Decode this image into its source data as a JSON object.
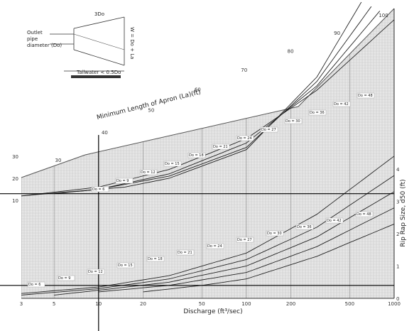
{
  "chart_data": {
    "type": "line",
    "title": "",
    "xlabel": "Discharge (ft³/sec)",
    "ylabel_left": "",
    "ylabel_right": "Rip Rap Size, d50 (ft)",
    "ylabel_diagonal": "Minimum Length of Apron (La)(ft)",
    "x_scale": "log",
    "xlim": [
      3,
      1000
    ],
    "x_ticks": [
      "3",
      "5",
      "10",
      "20",
      "50",
      "100",
      "200",
      "500",
      "1000"
    ],
    "left_ticks": [
      "10",
      "20",
      "30"
    ],
    "right_ticks": [
      "0",
      "1",
      "2",
      "3",
      "4"
    ],
    "diagonal_ticks": [
      "30",
      "40",
      "50",
      "60",
      "70",
      "80",
      "90",
      "100"
    ],
    "length_curve_labels": [
      "Do = 6",
      "Do = 9",
      "Do = 12",
      "Do = 15",
      "Do = 18",
      "Do = 21",
      "Do = 24",
      "Do = 27",
      "Do = 30",
      "Do = 36",
      "Do = 42",
      "Do = 48"
    ],
    "size_curve_labels": [
      "Do = 6",
      "Do = 9",
      "Do = 12",
      "Do = 15",
      "Do = 18",
      "Do = 21",
      "Do = 24",
      "Do = 27",
      "Do = 30",
      "Do = 36",
      "Do = 42",
      "Do = 48"
    ],
    "length_series": [
      {
        "x": [
          3,
          10,
          30,
          100,
          300,
          1000
        ],
        "y": [
          12,
          16,
          24,
          38,
          60,
          92
        ]
      },
      {
        "x": [
          3,
          10,
          30,
          100,
          300,
          800
        ],
        "y": [
          12,
          15,
          22,
          36,
          62,
          96
        ]
      },
      {
        "x": [
          5,
          10,
          30,
          100,
          300,
          700
        ],
        "y": [
          13,
          15,
          21,
          34,
          64,
          98
        ]
      },
      {
        "x": [
          7,
          15,
          30,
          100,
          300,
          600
        ],
        "y": [
          14,
          16,
          20,
          33,
          66,
          100
        ]
      }
    ],
    "size_series": [
      {
        "x": [
          3,
          10,
          30,
          100,
          300,
          1000
        ],
        "y": [
          0.15,
          0.35,
          0.7,
          1.4,
          2.6,
          4.4
        ]
      },
      {
        "x": [
          3,
          10,
          30,
          100,
          300,
          1000
        ],
        "y": [
          0.1,
          0.3,
          0.6,
          1.2,
          2.2,
          3.8
        ]
      },
      {
        "x": [
          5,
          10,
          30,
          100,
          300,
          1000
        ],
        "y": [
          0.1,
          0.25,
          0.5,
          1.0,
          1.9,
          3.3
        ]
      },
      {
        "x": [
          10,
          30,
          100,
          300,
          1000
        ],
        "y": [
          0.2,
          0.4,
          0.8,
          1.6,
          2.8
        ]
      },
      {
        "x": [
          20,
          50,
          100,
          300,
          1000
        ],
        "y": [
          0.2,
          0.4,
          0.6,
          1.3,
          2.3
        ]
      }
    ],
    "example_lines": {
      "x_discharge": 10,
      "length_ft": 13,
      "riprap_ft": 0.4
    },
    "grid": true
  },
  "inset": {
    "label_do": "3Do",
    "label_pipe": [
      "Outlet",
      "pipe",
      "diameter (Do)"
    ],
    "label_width": "W = Do + La",
    "label_tailwater": "Tailwater < 0.5Do"
  }
}
